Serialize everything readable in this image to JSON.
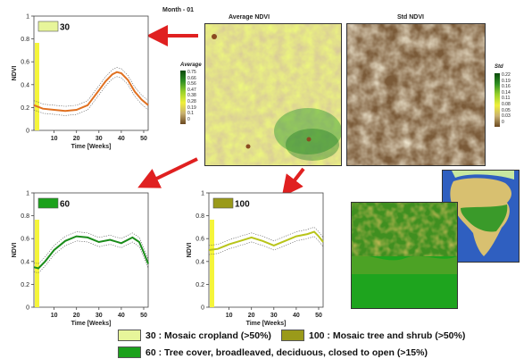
{
  "month_label": "Month - 01",
  "maps": {
    "avg_title": "Average NDVI",
    "std_title": "Std NDVI",
    "avg_cbar_title": "Average",
    "avg_cbar_ticks": [
      "0.75",
      "0.66",
      "0.56",
      "0.47",
      "0.38",
      "0.28",
      "0.19",
      "0.1",
      "0"
    ],
    "std_cbar_title": "Std",
    "std_cbar_ticks": [
      "0.22",
      "0.19",
      "0.16",
      "0.14",
      "0.11",
      "0.08",
      "0.05",
      "0.03",
      "0"
    ]
  },
  "charts": [
    {
      "id": "30",
      "label": "30",
      "swatch": "#e7f59a",
      "line_color": "#e07020",
      "xlabel": "Time [Weeks]",
      "ylabel": "NDVI",
      "xticks": [
        "10",
        "20",
        "30",
        "40",
        "50"
      ],
      "yticks": [
        "0",
        "0.2",
        "0.4",
        "0.6",
        "0.8",
        "1"
      ]
    },
    {
      "id": "60",
      "label": "60",
      "swatch": "#1ca11c",
      "line_color": "#1a8c1a",
      "xlabel": "Time [Weeks]",
      "ylabel": "NDVI",
      "xticks": [
        "10",
        "20",
        "30",
        "40",
        "50"
      ],
      "yticks": [
        "0",
        "0.2",
        "0.4",
        "0.6",
        "0.8",
        "1"
      ]
    },
    {
      "id": "100",
      "label": "100",
      "swatch": "#9a9a1a",
      "line_color": "#b8c41a",
      "xlabel": "Time [Weeks]",
      "ylabel": "NDVI",
      "xticks": [
        "10",
        "20",
        "30",
        "40",
        "50"
      ],
      "yticks": [
        "0",
        "0.2",
        "0.4",
        "0.6",
        "0.8",
        "1"
      ]
    }
  ],
  "chart_data": [
    {
      "type": "line",
      "title": "30",
      "xlabel": "Time [Weeks]",
      "ylabel": "NDVI",
      "xlim": [
        1,
        52
      ],
      "ylim": [
        0,
        1
      ],
      "x": [
        1,
        5,
        10,
        15,
        20,
        25,
        30,
        33,
        36,
        38,
        40,
        43,
        46,
        49,
        52
      ],
      "series": [
        {
          "values": [
            0.22,
            0.19,
            0.18,
            0.17,
            0.18,
            0.22,
            0.35,
            0.43,
            0.49,
            0.51,
            0.5,
            0.44,
            0.34,
            0.27,
            0.22
          ]
        }
      ]
    },
    {
      "type": "line",
      "title": "60",
      "xlabel": "Time [Weeks]",
      "ylabel": "NDVI",
      "xlim": [
        1,
        52
      ],
      "ylim": [
        0,
        1
      ],
      "x": [
        1,
        3,
        6,
        10,
        15,
        20,
        25,
        30,
        35,
        40,
        45,
        48,
        50,
        52
      ],
      "series": [
        {
          "values": [
            0.35,
            0.34,
            0.4,
            0.5,
            0.58,
            0.62,
            0.61,
            0.57,
            0.59,
            0.56,
            0.61,
            0.57,
            0.48,
            0.38
          ]
        }
      ]
    },
    {
      "type": "line",
      "title": "100",
      "xlabel": "Time [Weeks]",
      "ylabel": "NDVI",
      "xlim": [
        1,
        52
      ],
      "ylim": [
        0,
        1
      ],
      "x": [
        1,
        5,
        10,
        15,
        20,
        25,
        30,
        35,
        40,
        45,
        48,
        50,
        52
      ],
      "series": [
        {
          "values": [
            0.5,
            0.51,
            0.55,
            0.58,
            0.61,
            0.58,
            0.54,
            0.58,
            0.62,
            0.64,
            0.66,
            0.62,
            0.57
          ]
        }
      ]
    }
  ],
  "legend": [
    {
      "swatch": "#e7f59a",
      "text": "30 : Mosaic cropland (>50%)"
    },
    {
      "swatch": "#9a9a1a",
      "text": "100 : Mosaic tree and shrub (>50%)"
    },
    {
      "swatch": "#1ca11c",
      "text": "60 : Tree cover, broadleaved, deciduous, closed to open (>15%)"
    }
  ],
  "colors": {
    "arrow": "#e02020",
    "highlight_band": "#f5f53a"
  }
}
